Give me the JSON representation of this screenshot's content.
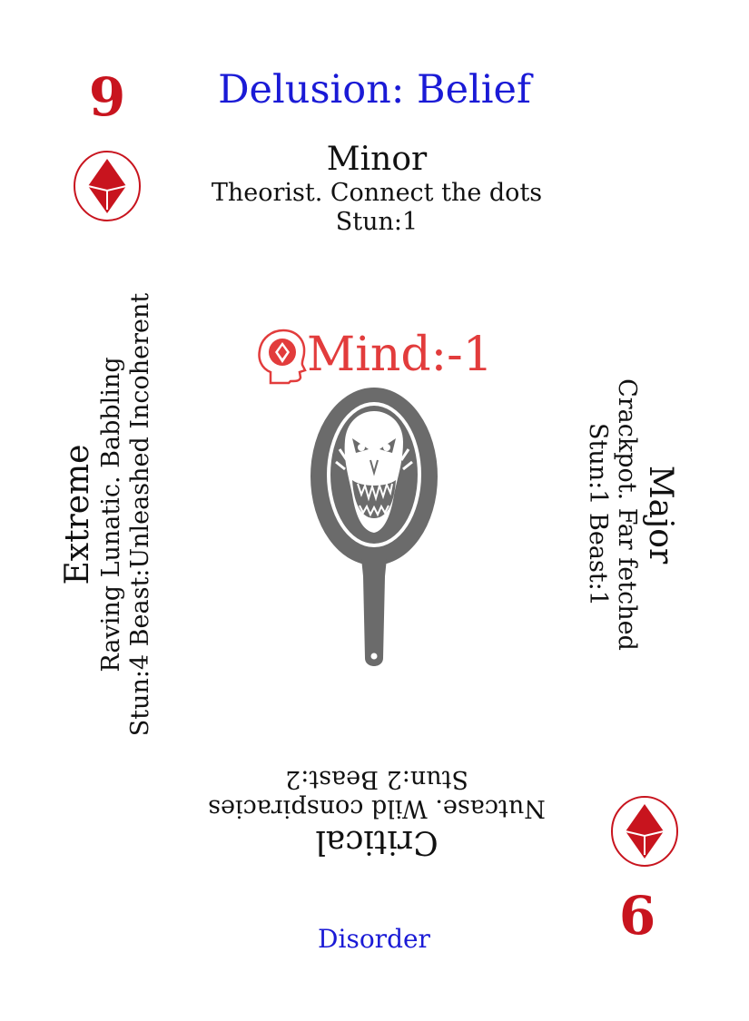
{
  "card": {
    "rank": "9",
    "rank_inverted": "6",
    "title": "Delusion: Belief",
    "footer": "Disorder",
    "colors": {
      "red": "#c8141e",
      "blue": "#1a1ad6",
      "mind_red": "#e23c3c",
      "mirror_grey": "#6b6b6b",
      "text": "#111111"
    }
  },
  "minor": {
    "heading": "Minor",
    "line1": "Theorist. Connect the dots",
    "line2": "Stun:1"
  },
  "major": {
    "heading": "Major",
    "line1": "Crackpot. Far fetched",
    "line2": "Stun:1 Beast:1"
  },
  "critical": {
    "heading": "Critical",
    "line1": "Nutcase. Wild conspiracies",
    "line2": "Stun:2 Beast:2"
  },
  "extreme": {
    "heading": "Extreme",
    "line1": "Raving Lunatic. Babbling",
    "line2": "Stun:4 Beast:Unleashed Incoherent"
  },
  "mind": {
    "label": "Mind:-1",
    "icon": "head-diamond-icon"
  },
  "art": {
    "icon": "haunted-mirror-icon"
  },
  "suit": {
    "icon": "diamond-suit-icon"
  }
}
